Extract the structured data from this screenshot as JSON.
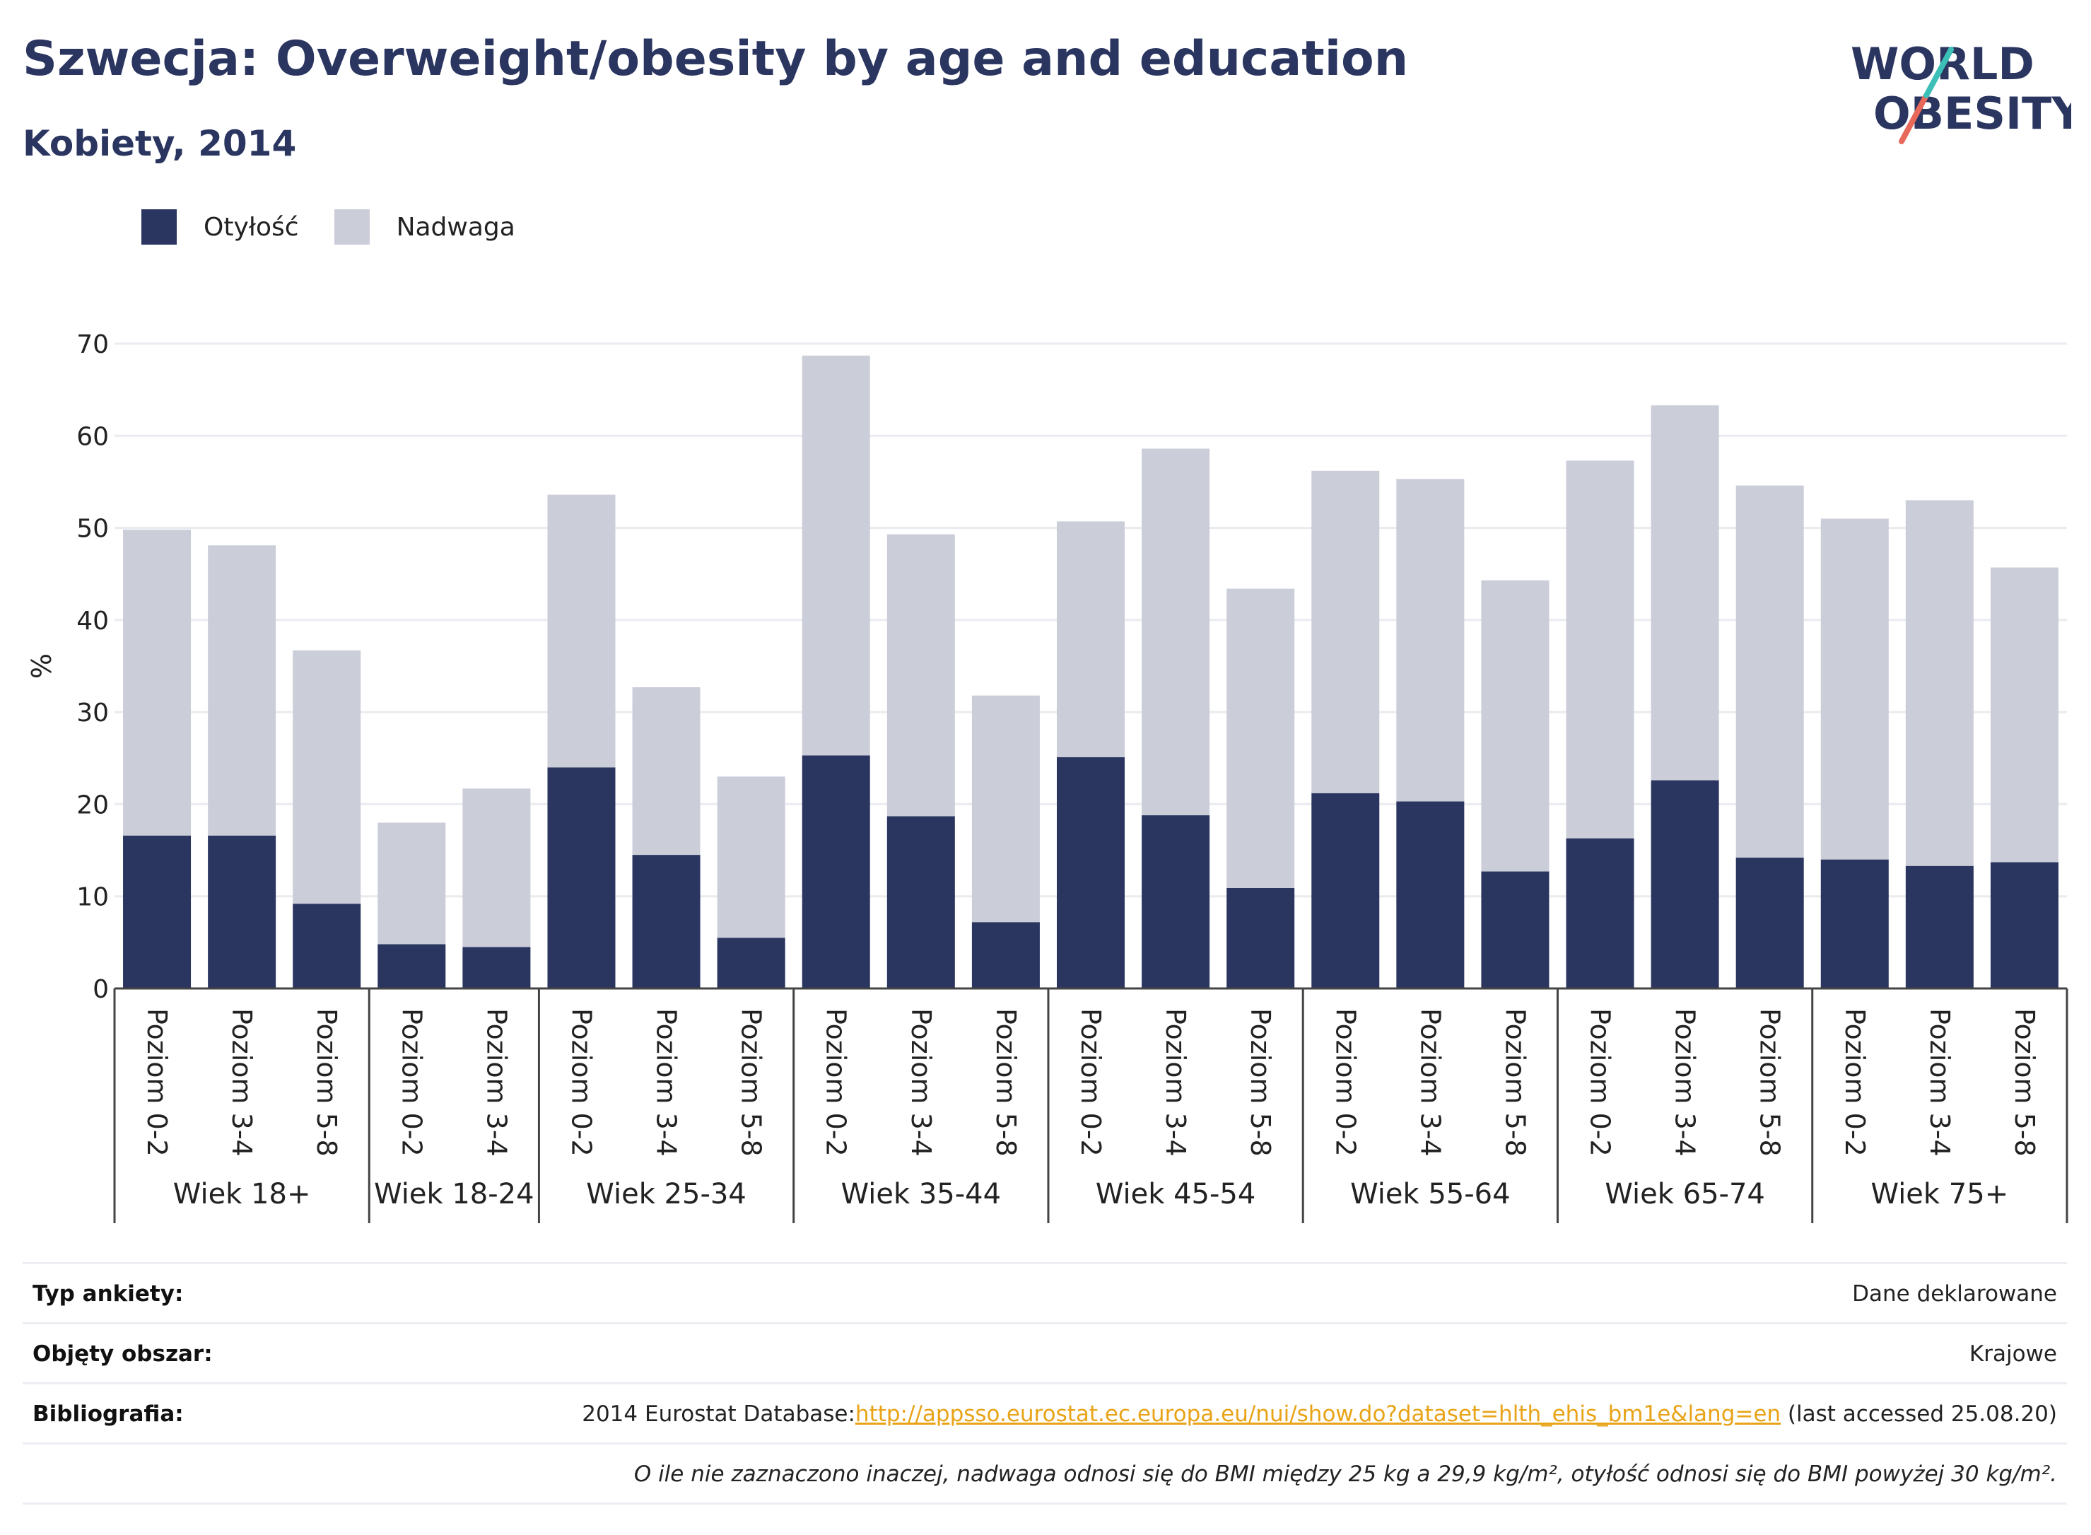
{
  "header": {
    "title": "Szwecja: Overweight/obesity by age and education",
    "subtitle": "Kobiety, 2014"
  },
  "logo": {
    "line1": "WORLD",
    "line2": "OBESITY"
  },
  "legend": [
    {
      "label": "Otyłość",
      "color": "#2a3560"
    },
    {
      "label": "Nadwaga",
      "color": "#cbcdd9"
    }
  ],
  "chart_data": {
    "type": "bar",
    "stacked": true,
    "ylabel": "%",
    "ylim": [
      0,
      70
    ],
    "yticks": [
      0,
      10,
      20,
      30,
      40,
      50,
      60,
      70
    ],
    "grid": true,
    "legend_position": "top-left",
    "groups": [
      {
        "label": "Wiek 18+",
        "categories": [
          "Poziom 0-2",
          "Poziom 3-4",
          "Poziom 5-8"
        ]
      },
      {
        "label": "Wiek 18-24",
        "categories": [
          "Poziom 0-2",
          "Poziom 3-4"
        ]
      },
      {
        "label": "Wiek 25-34",
        "categories": [
          "Poziom 0-2",
          "Poziom 3-4",
          "Poziom 5-8"
        ]
      },
      {
        "label": "Wiek 35-44",
        "categories": [
          "Poziom 0-2",
          "Poziom 3-4",
          "Poziom 5-8"
        ]
      },
      {
        "label": "Wiek 45-54",
        "categories": [
          "Poziom 0-2",
          "Poziom 3-4",
          "Poziom 5-8"
        ]
      },
      {
        "label": "Wiek 55-64",
        "categories": [
          "Poziom 0-2",
          "Poziom 3-4",
          "Poziom 5-8"
        ]
      },
      {
        "label": "Wiek 65-74",
        "categories": [
          "Poziom 0-2",
          "Poziom 3-4",
          "Poziom 5-8"
        ]
      },
      {
        "label": "Wiek 75+",
        "categories": [
          "Poziom 0-2",
          "Poziom 3-4",
          "Poziom 5-8"
        ]
      }
    ],
    "series": [
      {
        "name": "Otyłość",
        "color": "#2a3560",
        "values": [
          16.6,
          16.6,
          9.2,
          4.8,
          4.5,
          24.0,
          14.5,
          5.5,
          25.3,
          18.7,
          7.2,
          25.1,
          18.8,
          10.9,
          21.2,
          20.3,
          12.7,
          16.3,
          22.6,
          14.2,
          14.0,
          13.3,
          13.7
        ]
      },
      {
        "name": "Nadwaga",
        "color": "#cbcdd9",
        "values": [
          33.2,
          31.5,
          27.5,
          13.2,
          17.2,
          29.6,
          18.2,
          17.5,
          43.4,
          30.6,
          24.6,
          25.6,
          39.8,
          32.5,
          35.0,
          35.0,
          31.6,
          41.0,
          40.7,
          40.4,
          37.0,
          39.7,
          32.0
        ]
      }
    ]
  },
  "meta": {
    "survey_type_label": "Typ ankiety:",
    "survey_type_value": "Dane deklarowane",
    "area_label": "Objęty obszar:",
    "area_value": "Krajowe",
    "bibliography_label": "Bibliografia:",
    "bibliography_prefix": "2014 Eurostat Database:",
    "bibliography_link": "http://appsso.eurostat.ec.europa.eu/nui/show.do?dataset=hlth_ehis_bm1e&lang=en",
    "bibliography_suffix": " (last accessed 25.08.20)",
    "note": "O ile nie zaznaczono inaczej, nadwaga odnosi się do BMI między 25 kg a 29,9 kg/m², otyłość odnosi się do BMI powyżej 30 kg/m²."
  }
}
